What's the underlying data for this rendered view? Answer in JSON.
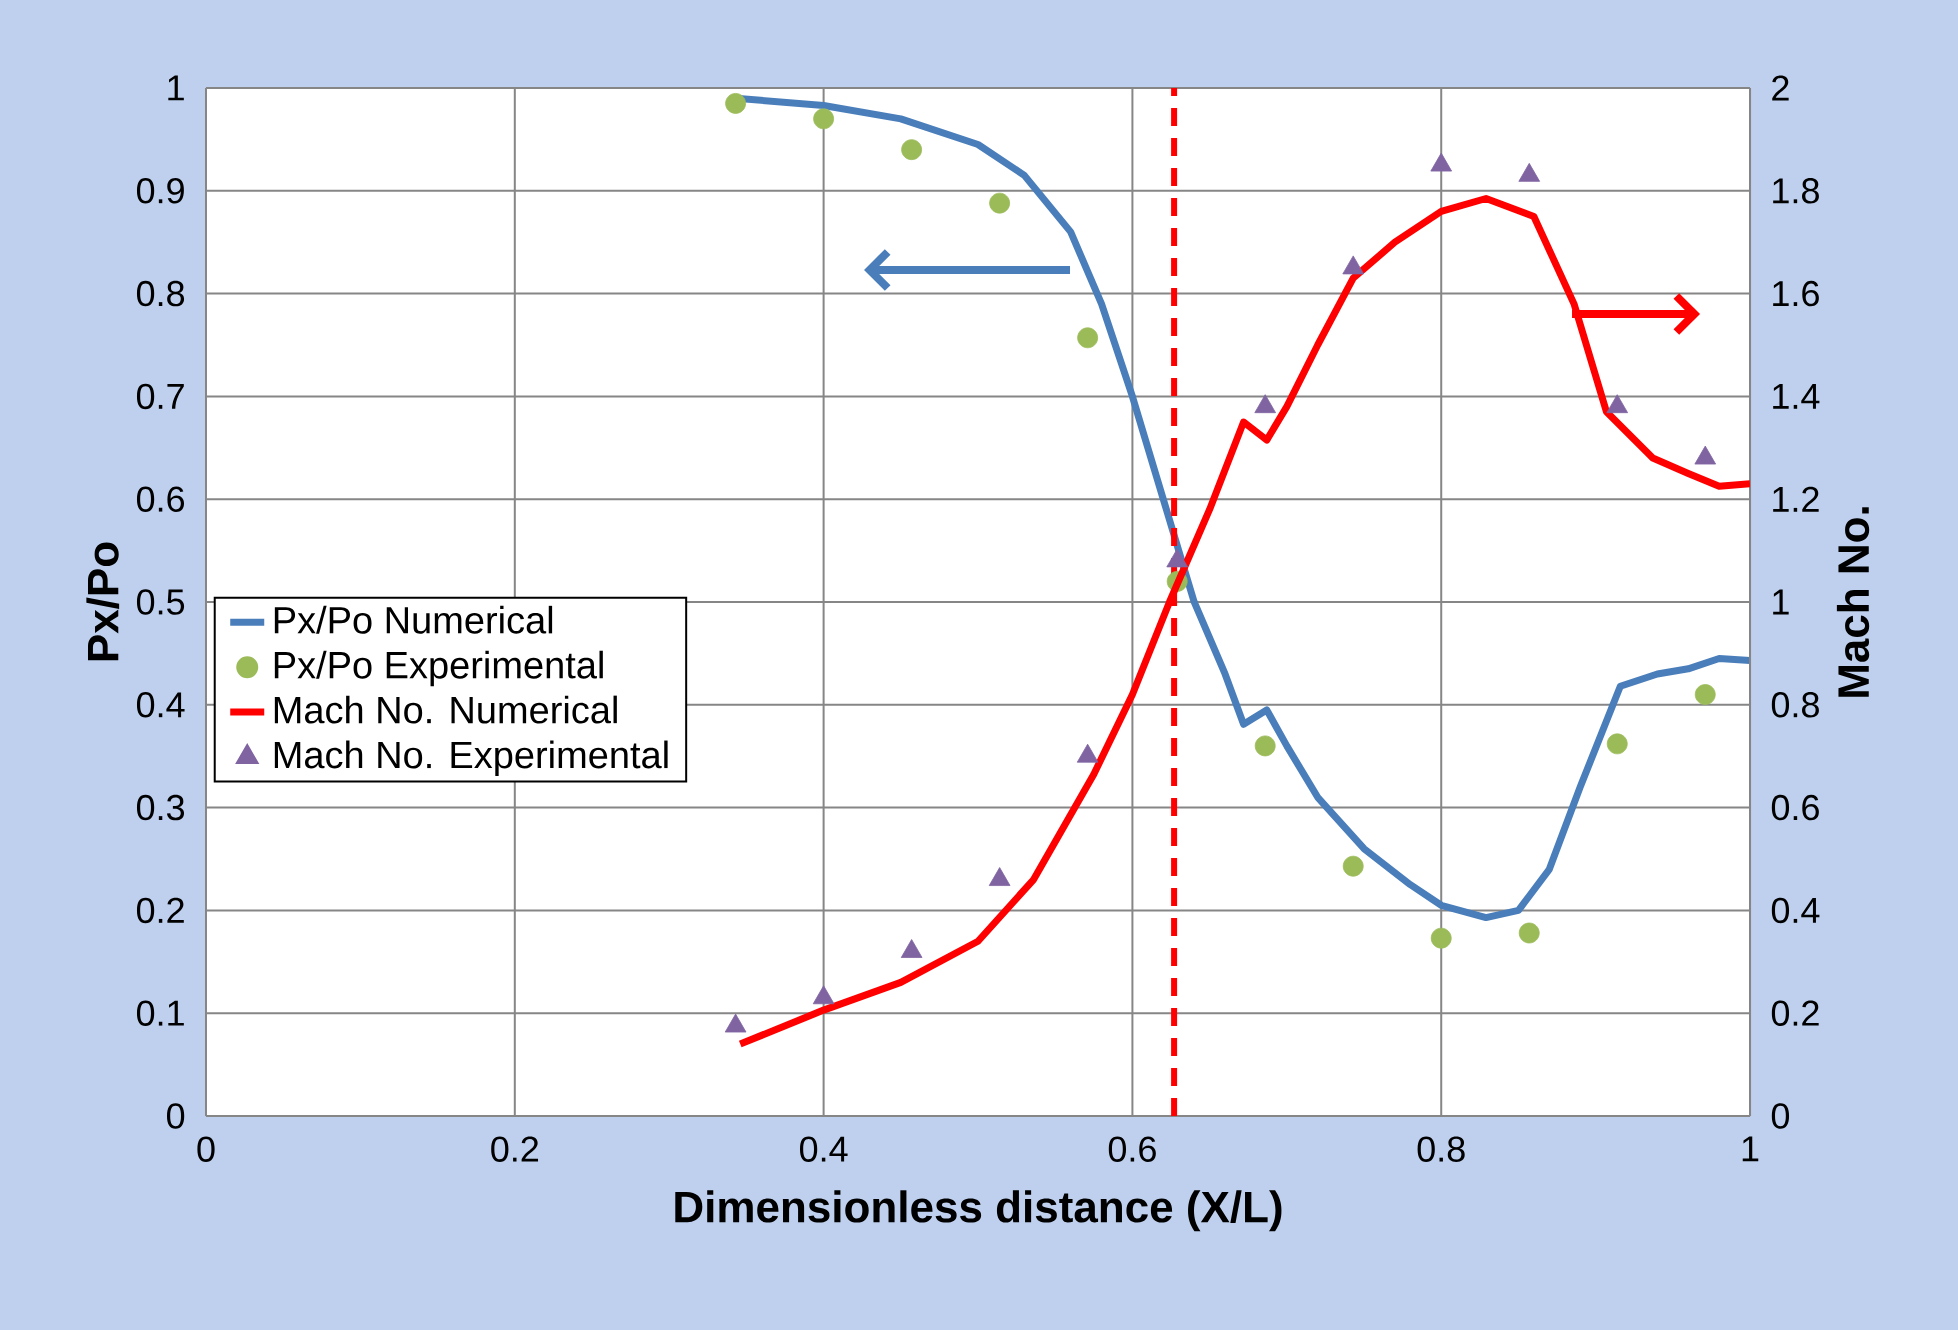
{
  "chart_data": {
    "type": "line",
    "xlabel": "Dimensionless distance (X/L)",
    "ylabel": "Px/Po",
    "y2label": "Mach No.",
    "xlim": [
      0,
      1
    ],
    "xticks": [
      0,
      0.2,
      0.4,
      0.6,
      0.8,
      1
    ],
    "ylim": [
      0,
      1
    ],
    "yticks": [
      0,
      0.1,
      0.2,
      0.3,
      0.4,
      0.5,
      0.6,
      0.7,
      0.8,
      0.9,
      1
    ],
    "y2lim": [
      0,
      2
    ],
    "y2ticks": [
      0,
      0.2,
      0.4,
      0.6,
      0.8,
      1,
      1.2,
      1.4,
      1.6,
      1.8,
      2
    ],
    "grid": true,
    "legend": "left",
    "ref_lines": [
      {
        "axis": "x",
        "value": 0.627,
        "color": "#ff0000",
        "line_style": "dashed"
      }
    ],
    "series": [
      {
        "name": "Px/Po Numerical",
        "marker": "none",
        "color": "#4a7ebb",
        "x": [
          0.343,
          0.4,
          0.45,
          0.5,
          0.53,
          0.56,
          0.58,
          0.6,
          0.62,
          0.64,
          0.66,
          0.672,
          0.687,
          0.7,
          0.72,
          0.75,
          0.78,
          0.8,
          0.829,
          0.85,
          0.87,
          0.89,
          0.916,
          0.94,
          0.96,
          0.98,
          1.0
        ],
        "values": [
          0.99,
          0.983,
          0.97,
          0.945,
          0.915,
          0.86,
          0.79,
          0.7,
          0.6,
          0.5,
          0.43,
          0.381,
          0.395,
          0.36,
          0.31,
          0.26,
          0.225,
          0.205,
          0.193,
          0.2,
          0.24,
          0.32,
          0.418,
          0.43,
          0.435,
          0.445,
          0.443
        ]
      },
      {
        "name": "Px/Po Experimental",
        "type": "scatter",
        "marker": "circle",
        "color": "#9bbb59",
        "x": [
          0.343,
          0.4,
          0.457,
          0.514,
          0.571,
          0.629,
          0.686,
          0.743,
          0.8,
          0.857,
          0.914,
          0.971
        ],
        "values": [
          0.985,
          0.97,
          0.94,
          0.888,
          0.757,
          0.52,
          0.36,
          0.243,
          0.173,
          0.178,
          0.362,
          0.41
        ]
      },
      {
        "name": "Mach No. Numerical",
        "marker": "none",
        "axis": "y2",
        "color": "#ff0000",
        "x": [
          0.346,
          0.4,
          0.45,
          0.5,
          0.536,
          0.575,
          0.6,
          0.624,
          0.65,
          0.672,
          0.687,
          0.7,
          0.72,
          0.743,
          0.77,
          0.8,
          0.829,
          0.86,
          0.886,
          0.907,
          0.937,
          0.96,
          0.98,
          1.0
        ],
        "values": [
          0.14,
          0.206,
          0.26,
          0.34,
          0.46,
          0.665,
          0.82,
          1.0,
          1.18,
          1.35,
          1.315,
          1.38,
          1.5,
          1.63,
          1.7,
          1.76,
          1.785,
          1.75,
          1.58,
          1.37,
          1.28,
          1.25,
          1.225,
          1.23
        ]
      },
      {
        "name": "Mach No. Experimental",
        "type": "scatter",
        "marker": "triangle",
        "axis": "y2",
        "color": "#8064a2",
        "x": [
          0.343,
          0.4,
          0.457,
          0.514,
          0.571,
          0.629,
          0.686,
          0.743,
          0.8,
          0.857,
          0.914,
          0.971
        ],
        "values": [
          0.175,
          0.23,
          0.32,
          0.46,
          0.7,
          1.08,
          1.38,
          1.65,
          1.85,
          1.83,
          1.38,
          1.28
        ]
      }
    ]
  }
}
